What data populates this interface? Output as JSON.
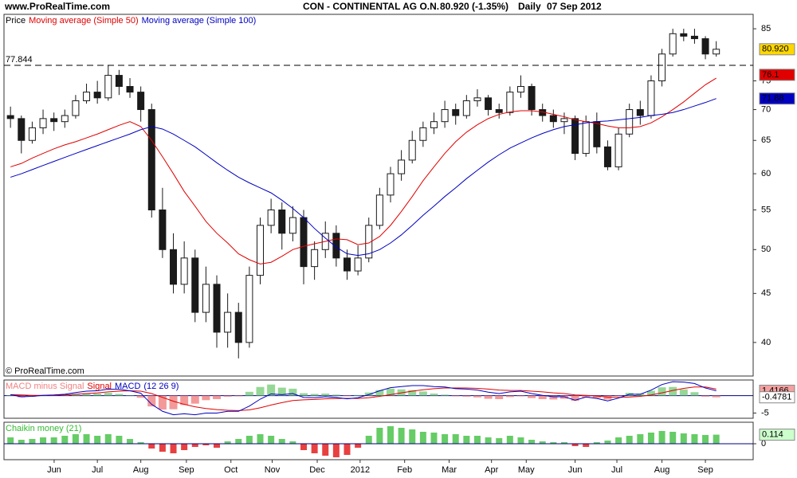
{
  "header": {
    "site": "www.ProRealTime.com",
    "instrument": "CON - CONTINENTAL AG O.N.",
    "quote": "80.920 (-1.35%)",
    "period": "Daily",
    "date": "07 Sep 2012"
  },
  "chart_data": [
    {
      "type": "candlestick",
      "legend_title": "Price",
      "copyright": "© ProRealTime.com",
      "log_scale": true,
      "x": [
        0,
        1,
        2,
        3,
        4,
        5,
        6,
        7,
        8,
        9,
        10,
        11,
        12,
        13,
        14,
        15,
        16,
        17,
        18,
        19,
        20,
        21,
        22,
        23,
        24,
        25,
        26,
        27,
        28,
        29,
        30,
        31,
        32,
        33,
        34,
        35,
        36,
        37,
        38,
        39,
        40,
        41,
        42,
        43,
        44,
        45,
        46,
        47,
        48,
        49,
        50,
        51,
        52,
        53,
        54,
        55,
        56,
        57,
        58,
        59,
        60,
        61,
        62,
        63,
        64,
        65
      ],
      "open": [
        69,
        68.5,
        65,
        67,
        68.5,
        68,
        69,
        71.5,
        73,
        72,
        76,
        74,
        73,
        70,
        55,
        50,
        46,
        49,
        43,
        46,
        41,
        43,
        40,
        47,
        53,
        55,
        52,
        54,
        48,
        50,
        52,
        49,
        47.5,
        49,
        53,
        57,
        60,
        62,
        65,
        67,
        68,
        70,
        69,
        71.5,
        72,
        70,
        69.5,
        73,
        74,
        70,
        69,
        68,
        68.5,
        63,
        68,
        64,
        61,
        66,
        70,
        69,
        75,
        80,
        84,
        83.5,
        83,
        80
      ],
      "high": [
        70.5,
        69,
        68,
        70,
        69.5,
        70,
        72.5,
        74.5,
        75,
        77.8,
        77,
        75.5,
        74,
        71,
        58,
        52,
        51,
        50,
        48,
        47,
        45,
        44,
        48,
        54,
        56.5,
        56,
        55.5,
        55,
        51,
        53.5,
        53,
        50,
        50.5,
        54,
        58,
        61,
        63.5,
        66.5,
        68,
        69.5,
        71.5,
        71,
        72.5,
        73.5,
        72.5,
        71,
        74,
        76,
        74.5,
        71,
        70,
        69.5,
        69,
        69,
        69.5,
        65,
        67,
        71,
        71.5,
        76,
        81,
        85,
        85,
        85,
        83.5,
        82.5
      ],
      "low": [
        67,
        63,
        64.5,
        66,
        66.5,
        67,
        68.5,
        71,
        71,
        71.5,
        72.5,
        72,
        68,
        54,
        49,
        45,
        45,
        42,
        42,
        39.5,
        39.5,
        38.5,
        39.5,
        46,
        52,
        50,
        51,
        46,
        46.5,
        49,
        48,
        46.5,
        47,
        48.5,
        52.5,
        56,
        59,
        61.5,
        64,
        66,
        67,
        67.5,
        68.5,
        70.5,
        69,
        68.5,
        69,
        72,
        69,
        68,
        67,
        66,
        62,
        62.5,
        63,
        60.5,
        60.5,
        65.5,
        67.5,
        68.5,
        74,
        79.5,
        82.5,
        82,
        79,
        79.5
      ],
      "close": [
        68.5,
        65,
        67,
        68.5,
        68,
        69,
        71.5,
        73,
        72,
        76,
        74,
        73,
        70,
        55,
        50,
        46,
        49,
        43,
        46,
        41,
        43,
        40,
        47,
        53,
        55,
        52,
        54,
        48,
        50,
        52,
        49,
        47.5,
        49,
        53,
        57,
        60,
        62,
        65,
        67,
        68,
        70,
        69,
        71.5,
        72,
        70,
        69.5,
        73,
        74,
        70,
        69,
        68,
        68.5,
        63,
        68,
        64,
        61,
        66,
        70,
        69,
        75,
        80,
        84,
        83.5,
        83,
        80,
        80.92
      ],
      "up_color": "#ffffff",
      "down_color": "#1a1a1a",
      "series": [
        {
          "name": "Moving average (Simple 50)",
          "color": "#e00000",
          "values": [
            61,
            61.5,
            62.3,
            63,
            63.7,
            64.3,
            64.8,
            65.4,
            66,
            66.7,
            67.4,
            68,
            67.2,
            65,
            62.5,
            60,
            57.5,
            55.5,
            53.5,
            52,
            50.8,
            49.5,
            48.8,
            48.3,
            48.5,
            49.2,
            50,
            50.4,
            50.7,
            51,
            51.3,
            51.2,
            50.6,
            50.8,
            51.6,
            53,
            54.8,
            56.8,
            59,
            61,
            63,
            64.8,
            66.3,
            67.5,
            68.5,
            69.2,
            69.6,
            69.8,
            69.8,
            69.6,
            69.2,
            68.8,
            68.3,
            68,
            67.7,
            67.3,
            67,
            67,
            67.2,
            67.8,
            68.8,
            70,
            71.3,
            72.8,
            74.3,
            75.5
          ]
        },
        {
          "name": "Moving average (Simple 100)",
          "color": "#0000c0",
          "values": [
            59.5,
            60,
            60.6,
            61.2,
            61.8,
            62.4,
            63,
            63.6,
            64.2,
            64.8,
            65.4,
            66,
            66.7,
            67.2,
            66.8,
            66,
            65,
            64,
            62.8,
            61.6,
            60.5,
            59.5,
            58.7,
            58,
            57.3,
            56.3,
            55.2,
            54,
            52.6,
            51.4,
            50.3,
            49.5,
            49.3,
            49.5,
            50,
            50.8,
            51.8,
            53,
            54.3,
            55.5,
            56.8,
            58,
            59.3,
            60.5,
            61.7,
            62.8,
            63.8,
            64.6,
            65.4,
            66.1,
            66.7,
            67.2,
            67.5,
            67.8,
            68,
            68.1,
            68.3,
            68.5,
            68.7,
            69,
            69.2,
            69.5,
            70,
            70.6,
            71.2,
            71.88
          ]
        }
      ],
      "reference_line": 77.844,
      "markers": [
        {
          "value": 80.92,
          "label": "80.920",
          "color": "#ffd700"
        },
        {
          "value": 76.1,
          "color": "#e00000"
        },
        {
          "value": 71.88,
          "color": "#0000c0"
        }
      ],
      "xlim": [
        -0.6,
        68.4
      ],
      "ylim": [
        36.9,
        88
      ],
      "yticks": [
        40,
        45,
        50,
        55,
        60,
        65,
        70,
        75,
        85
      ]
    },
    {
      "type": "macd",
      "title": "(12 26 9)",
      "x": [
        0,
        1,
        2,
        3,
        4,
        5,
        6,
        7,
        8,
        9,
        10,
        11,
        12,
        13,
        14,
        15,
        16,
        17,
        18,
        19,
        20,
        21,
        22,
        23,
        24,
        25,
        26,
        27,
        28,
        29,
        30,
        31,
        32,
        33,
        34,
        35,
        36,
        37,
        38,
        39,
        40,
        41,
        42,
        43,
        44,
        45,
        46,
        47,
        48,
        49,
        50,
        51,
        52,
        53,
        54,
        55,
        56,
        57,
        58,
        59,
        60,
        61,
        62,
        63,
        64,
        65
      ],
      "series": [
        {
          "name": "MACD minus Signal",
          "kind": "histogram",
          "color": "#f08080",
          "positive_color": "#7ccd7c",
          "values": [
            0,
            -0.5,
            -0.3,
            0,
            0.1,
            0.2,
            0.5,
            0.7,
            0.6,
            0.8,
            0.5,
            0,
            -0.6,
            -3.1,
            -4,
            -3.9,
            -2.7,
            -2.3,
            -1.3,
            -1,
            -0.3,
            -0.2,
            1.1,
            2.5,
            3.2,
            2.3,
            2,
            0.7,
            0.5,
            0.6,
            0.3,
            -0.1,
            0.2,
            0.9,
            1.6,
            2,
            1.8,
            1.6,
            1.2,
            0.6,
            0.3,
            -0.2,
            -0.3,
            -0.5,
            -0.9,
            -1,
            -0.4,
            -0.2,
            -0.7,
            -1,
            -1.1,
            -0.9,
            -1.5,
            -0.5,
            -0.7,
            -1.1,
            -0.2,
            0.8,
            0.6,
            1.4,
            2.4,
            2.5,
            1.8,
            1,
            -0.3,
            -0.4781
          ]
        },
        {
          "name": "Signal",
          "color": "#e00000",
          "values": [
            0.3,
            0.2,
            0.1,
            0.1,
            0.1,
            0.2,
            0.4,
            0.6,
            0.8,
            1.1,
            1.3,
            1.4,
            1.3,
            0.6,
            -0.5,
            -1.6,
            -2.5,
            -3.2,
            -3.7,
            -4,
            -4.2,
            -4.3,
            -4.1,
            -3.5,
            -2.7,
            -2,
            -1.4,
            -1.2,
            -1.1,
            -0.9,
            -0.8,
            -0.8,
            -0.8,
            -0.6,
            -0.2,
            0.3,
            0.8,
            1.3,
            1.7,
            2,
            2.2,
            2.2,
            2.2,
            2.1,
            1.9,
            1.6,
            1.5,
            1.5,
            1.3,
            1.1,
            0.8,
            0.6,
            0.2,
            0.1,
            -0.1,
            -0.4,
            -0.5,
            -0.4,
            -0.2,
            0.2,
            0.8,
            1.5,
            2.1,
            2.5,
            2.5,
            1.8947
          ]
        },
        {
          "name": "MACD",
          "color": "#0000c0",
          "values": [
            0.3,
            -0.3,
            -0.2,
            0.1,
            0.2,
            0.4,
            0.9,
            1.3,
            1.4,
            1.9,
            1.8,
            1.4,
            0.7,
            -2.5,
            -4.5,
            -5.5,
            -5.2,
            -5.5,
            -5,
            -5,
            -4.5,
            -4.5,
            -3,
            -1,
            0.5,
            0.3,
            0.6,
            -0.5,
            -0.6,
            -0.3,
            -0.5,
            -0.9,
            -0.6,
            0.3,
            1.4,
            2.3,
            2.6,
            2.9,
            2.9,
            2.6,
            2.5,
            2,
            1.9,
            1.6,
            1,
            0.6,
            1.1,
            1.3,
            0.6,
            0.1,
            -0.3,
            -0.3,
            -1.3,
            -0.4,
            -0.8,
            -1.5,
            -0.7,
            0.4,
            0.4,
            1.6,
            3.2,
            4,
            3.9,
            3.5,
            2.2,
            1.4166
          ]
        }
      ],
      "markers": [
        {
          "value": 1.4166,
          "color": "#f4a0a0"
        },
        {
          "value": -0.4781,
          "color": "#ffffff"
        }
      ],
      "xlim": [
        -0.6,
        68.4
      ],
      "ylim": [
        -6.5,
        4.5
      ],
      "yticks": [
        -5
      ]
    },
    {
      "type": "bar",
      "title": "Chaikin money (21)",
      "x": [
        0,
        1,
        2,
        3,
        4,
        5,
        6,
        7,
        8,
        9,
        10,
        11,
        12,
        13,
        14,
        15,
        16,
        17,
        18,
        19,
        20,
        21,
        22,
        23,
        24,
        25,
        26,
        27,
        28,
        29,
        30,
        31,
        32,
        33,
        34,
        35,
        36,
        37,
        38,
        39,
        40,
        41,
        42,
        43,
        44,
        45,
        46,
        47,
        48,
        49,
        50,
        51,
        52,
        53,
        54,
        55,
        56,
        57,
        58,
        59,
        60,
        61,
        62,
        63,
        64,
        65
      ],
      "values": [
        0.08,
        0.05,
        0.06,
        0.08,
        0.08,
        0.1,
        0.12,
        0.12,
        0.1,
        0.12,
        0.1,
        0.06,
        0.02,
        -0.06,
        -0.1,
        -0.12,
        -0.08,
        -0.04,
        -0.02,
        -0.05,
        0.03,
        0.06,
        0.1,
        0.12,
        0.1,
        0.06,
        0.03,
        -0.08,
        -0.12,
        -0.15,
        -0.17,
        -0.14,
        -0.05,
        0.1,
        0.2,
        0.22,
        0.2,
        0.18,
        0.15,
        0.14,
        0.12,
        0.12,
        0.1,
        0.1,
        0.08,
        0.07,
        0.1,
        0.08,
        0.05,
        0.03,
        0.02,
        0.02,
        -0.03,
        -0.04,
        0.02,
        0.04,
        0.08,
        0.1,
        0.12,
        0.14,
        0.16,
        0.15,
        0.13,
        0.12,
        0.11,
        0.114
      ],
      "color": "#33bb33",
      "negative_color": "#e00000",
      "markers": [
        {
          "value": 0.114,
          "color": "#ccffcc"
        }
      ],
      "xlim": [
        -0.6,
        68.4
      ],
      "ylim": [
        -0.2,
        0.27
      ],
      "yticks": [
        0
      ],
      "xticks": [
        {
          "value": 4.02,
          "label": "Jun"
        },
        {
          "value": 8.0,
          "label": "Jul"
        },
        {
          "value": 12.0,
          "label": "Aug"
        },
        {
          "value": 16.2,
          "label": "Sep"
        },
        {
          "value": 20.3,
          "label": "Oct"
        },
        {
          "value": 24.1,
          "label": "Nov"
        },
        {
          "value": 28.25,
          "label": "Dec"
        },
        {
          "value": 32.2,
          "label": "2012"
        },
        {
          "value": 36.3,
          "label": "Feb"
        },
        {
          "value": 40.4,
          "label": "Mar"
        },
        {
          "value": 44.3,
          "label": "Apr"
        },
        {
          "value": 47.5,
          "label": "May"
        },
        {
          "value": 52.0,
          "label": "Jun"
        },
        {
          "value": 55.85,
          "label": "Jul"
        },
        {
          "value": 60.0,
          "label": "Aug"
        },
        {
          "value": 64.0,
          "label": "Sep"
        }
      ]
    }
  ]
}
